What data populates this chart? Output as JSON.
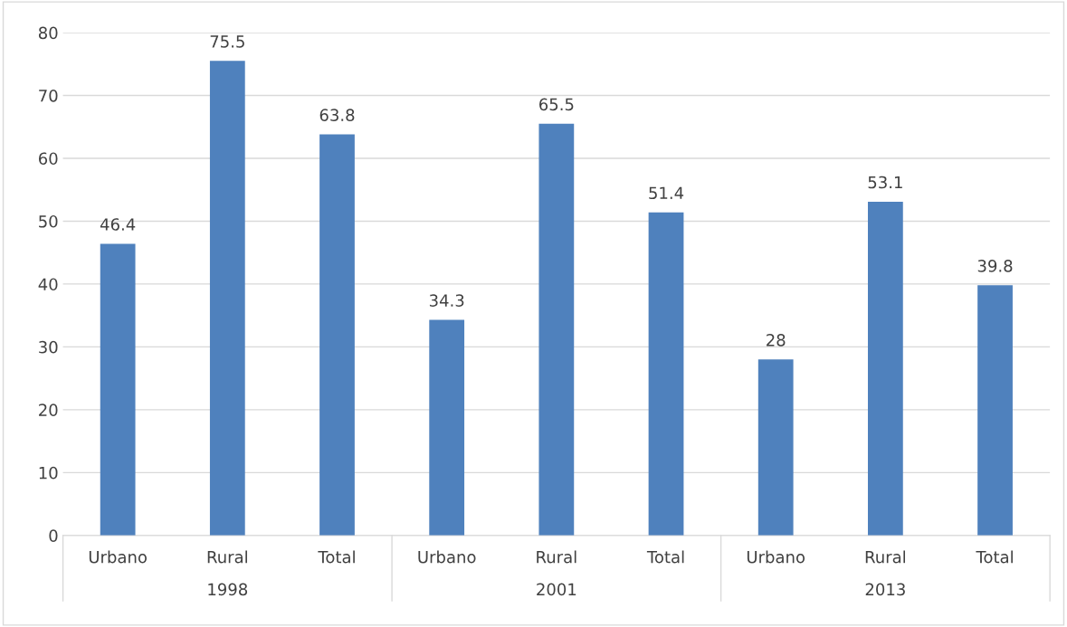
{
  "chart_data": {
    "type": "bar",
    "categories": [
      "Urbano",
      "Rural",
      "Total",
      "Urbano",
      "Rural",
      "Total",
      "Urbano",
      "Rural",
      "Total"
    ],
    "values": [
      46.4,
      75.5,
      63.8,
      34.3,
      65.5,
      51.4,
      28,
      53.1,
      39.8
    ],
    "color": "#4f81bd",
    "annotations": [
      "1998",
      "2001",
      "2013"
    ],
    "ylim": [
      0,
      80
    ],
    "yticks": [
      0,
      10,
      20,
      30,
      40,
      50,
      60,
      70,
      80
    ],
    "grid": "y",
    "data_labels": true
  }
}
